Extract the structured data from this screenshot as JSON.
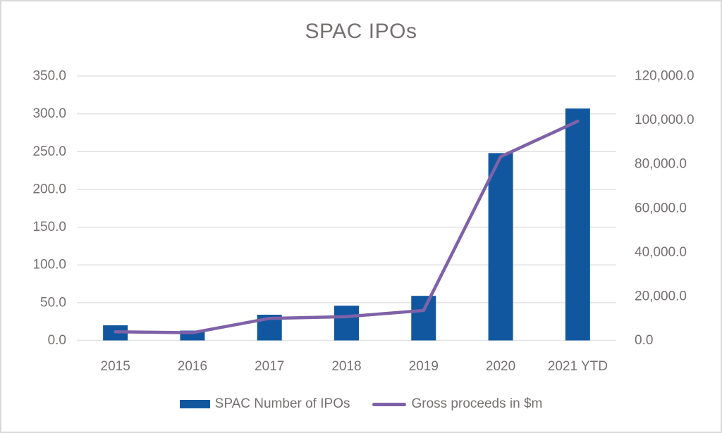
{
  "chart_data": {
    "type": "combo",
    "title": "SPAC IPOs",
    "categories": [
      "2015",
      "2016",
      "2017",
      "2018",
      "2019",
      "2020",
      "2021 YTD"
    ],
    "series": [
      {
        "name": "SPAC Number of IPOs",
        "kind": "bar",
        "axis": "left",
        "values": [
          20,
          13,
          34,
          46,
          59,
          248,
          307
        ],
        "color": "#1157A0"
      },
      {
        "name": "Gross proceeds in $m",
        "kind": "line",
        "axis": "right",
        "values": [
          3900,
          3500,
          10000,
          10800,
          13600,
          83400,
          99500
        ],
        "color": "#7E62A8"
      }
    ],
    "axes": {
      "left": {
        "min": 0,
        "max": 350,
        "tick_labels": [
          "0.0",
          "50.0",
          "100.0",
          "150.0",
          "200.0",
          "250.0",
          "300.0",
          "350.0"
        ]
      },
      "right": {
        "min": 0,
        "max": 120000,
        "tick_labels": [
          "0.0",
          "20,000.0",
          "40,000.0",
          "60,000.0",
          "80,000.0",
          "100,000.0",
          "120,000.0"
        ]
      }
    },
    "grid": true,
    "legend_position": "bottom",
    "colors": {
      "grid": "#E2E2E2",
      "text": "#767171",
      "border": "#D9D9D9",
      "background": "#FFFFFF"
    }
  }
}
